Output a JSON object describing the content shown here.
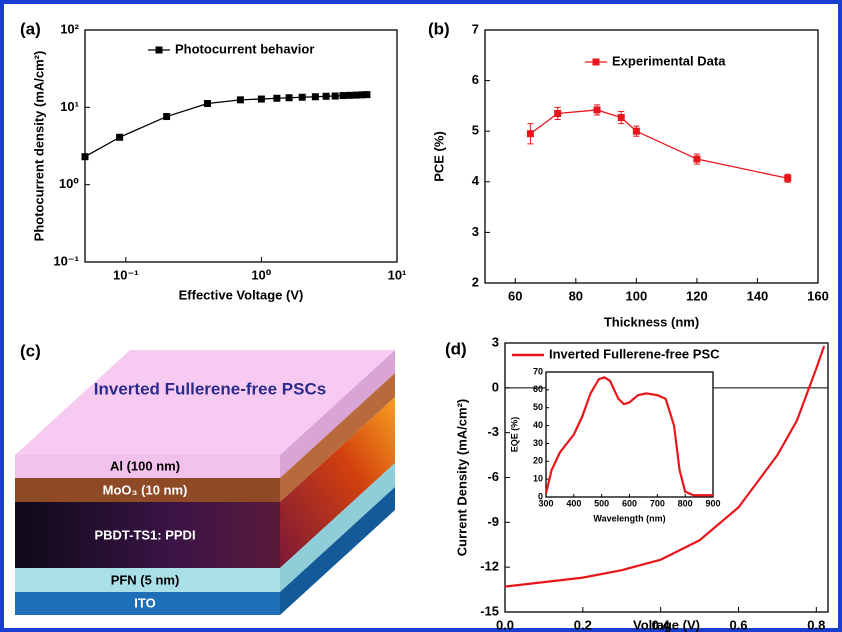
{
  "chart_data": [
    {
      "type": "line",
      "panel_label": "(a)",
      "xlabel": "Effective Voltage (V)",
      "ylabel": "Photocurrent density (mA/cm²)",
      "log_x": true,
      "log_y": true,
      "marker": "square",
      "legend": "upper left",
      "x": [
        0.05,
        0.09,
        0.2,
        0.4,
        0.7,
        1.0,
        1.3,
        1.6,
        2.0,
        2.5,
        3.0,
        3.5,
        4.0,
        4.5,
        5.0,
        5.5,
        6.0
      ],
      "series": [
        {
          "name": "Photocurrent behavior",
          "color": "#000000",
          "values": [
            2.3,
            4.1,
            7.6,
            11.2,
            12.5,
            12.8,
            13.1,
            13.3,
            13.5,
            13.7,
            13.9,
            14.0,
            14.2,
            14.3,
            14.4,
            14.5,
            14.6
          ]
        }
      ],
      "xlim": [
        0.05,
        10
      ],
      "ylim": [
        0.1,
        100
      ],
      "xticks": [
        {
          "value": 0.1,
          "label": "10⁻¹"
        },
        {
          "value": 1,
          "label": "10⁰"
        },
        {
          "value": 10,
          "label": "10¹"
        }
      ],
      "yticks": [
        {
          "value": 0.1,
          "label": "10⁻¹"
        },
        {
          "value": 1,
          "label": "10⁰"
        },
        {
          "value": 10,
          "label": "10¹"
        },
        {
          "value": 100,
          "label": "10²"
        }
      ]
    },
    {
      "type": "line",
      "panel_label": "(b)",
      "xlabel": "Thickness (nm)",
      "ylabel": "PCE (%)",
      "marker": "square",
      "legend": "upper center",
      "x": [
        65,
        74,
        87,
        95,
        100,
        120,
        150
      ],
      "series": [
        {
          "name": "Experimental Data",
          "color": "#e8161b",
          "values": [
            4.95,
            5.35,
            5.42,
            5.27,
            5.0,
            4.45,
            4.07
          ],
          "errors": [
            0.2,
            0.12,
            0.1,
            0.12,
            0.1,
            0.1,
            0.08
          ]
        }
      ],
      "xlim": [
        50,
        160
      ],
      "ylim": [
        2,
        7
      ],
      "xticks": [
        60,
        80,
        100,
        120,
        140,
        160
      ],
      "yticks": [
        2,
        3,
        4,
        5,
        6,
        7
      ]
    },
    {
      "type": "line",
      "panel_label": "(d)",
      "xlabel": "Voltage (V)",
      "ylabel": "Current Density (mA/cm²)",
      "legend": "upper left",
      "reference_line": 0,
      "x": [
        0,
        0.1,
        0.2,
        0.3,
        0.4,
        0.5,
        0.6,
        0.7,
        0.75,
        0.8,
        0.82
      ],
      "series": [
        {
          "name": "Inverted Fullerene-free PSC",
          "color": "#e8161b",
          "values": [
            -13.3,
            -13.0,
            -12.7,
            -12.2,
            -11.5,
            -10.2,
            -8.0,
            -4.5,
            -2.2,
            1.3,
            2.8
          ]
        }
      ],
      "xlim": [
        0,
        0.83
      ],
      "ylim": [
        -15,
        3
      ],
      "xticks": [
        {
          "value": 0,
          "label": "0.0"
        },
        0.2,
        0.4,
        0.6,
        0.8
      ],
      "yticks": [
        -15,
        -12,
        -9,
        -6,
        -3,
        0,
        3
      ]
    },
    {
      "type": "line",
      "xlabel": "Wavelength (nm)",
      "ylabel": "EQE (%)",
      "x": [
        300,
        320,
        350,
        400,
        430,
        460,
        490,
        510,
        530,
        560,
        580,
        600,
        630,
        660,
        700,
        730,
        760,
        780,
        800,
        830,
        900
      ],
      "series": [
        {
          "color": "#e8161b",
          "values": [
            2,
            15,
            25,
            35,
            45,
            58,
            66,
            67,
            65,
            55,
            52,
            53,
            57,
            58,
            57,
            55,
            40,
            15,
            3,
            1,
            1
          ]
        }
      ],
      "xlim": [
        300,
        900
      ],
      "ylim": [
        0,
        70
      ],
      "xticks": [
        300,
        400,
        500,
        600,
        700,
        800,
        900
      ],
      "yticks": [
        0,
        10,
        20,
        30,
        40,
        50,
        60,
        70
      ]
    }
  ],
  "diagram": {
    "label": "(c)",
    "title": "Inverted Fullerene-free PSCs",
    "layers": [
      "Al (100 nm)",
      "MoO₃ (10 nm)",
      "PBDT-TS1: PPDI",
      "PFN (5 nm)",
      "ITO"
    ]
  }
}
